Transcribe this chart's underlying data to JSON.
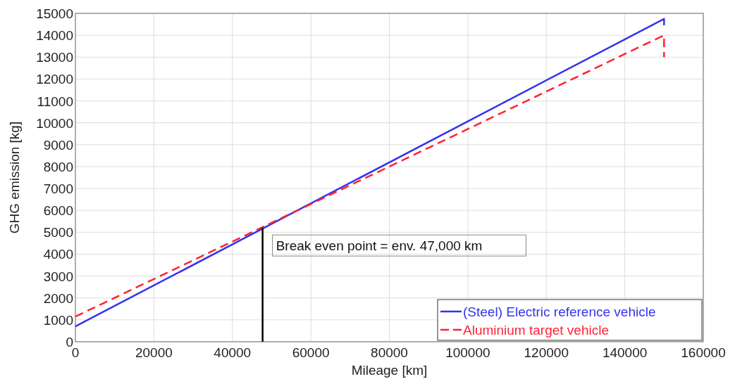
{
  "chart_data": {
    "type": "line",
    "xlabel": "Mileage [km]",
    "ylabel": "GHG emission [kg]",
    "xlim": [
      0,
      160000
    ],
    "ylim": [
      0,
      15000
    ],
    "xticks": [
      0,
      20000,
      40000,
      60000,
      80000,
      100000,
      120000,
      140000,
      160000
    ],
    "yticks": [
      0,
      1000,
      2000,
      3000,
      4000,
      5000,
      6000,
      7000,
      8000,
      9000,
      10000,
      11000,
      12000,
      13000,
      14000,
      15000
    ],
    "grid": true,
    "legend": "bottom right",
    "series": [
      {
        "name": "(Steel) Electric reference vehicle",
        "color": "#3333ee",
        "line_style": "solid",
        "x": [
          0,
          150000,
          150000
        ],
        "values": [
          700,
          14750,
          14450
        ]
      },
      {
        "name": "Aluminium target vehicle",
        "color": "#ff2233",
        "line_style": "dashed",
        "x": [
          0,
          150000,
          150000
        ],
        "values": [
          1150,
          14000,
          13000
        ]
      },
      {
        "color": "#000000",
        "line_style": "solid",
        "x": [
          47700,
          47700
        ],
        "values": [
          0,
          5200
        ]
      }
    ],
    "annotations": [
      {
        "text": "Break even point = env. 47,000 km",
        "x": 47700,
        "y": 5200
      }
    ]
  }
}
